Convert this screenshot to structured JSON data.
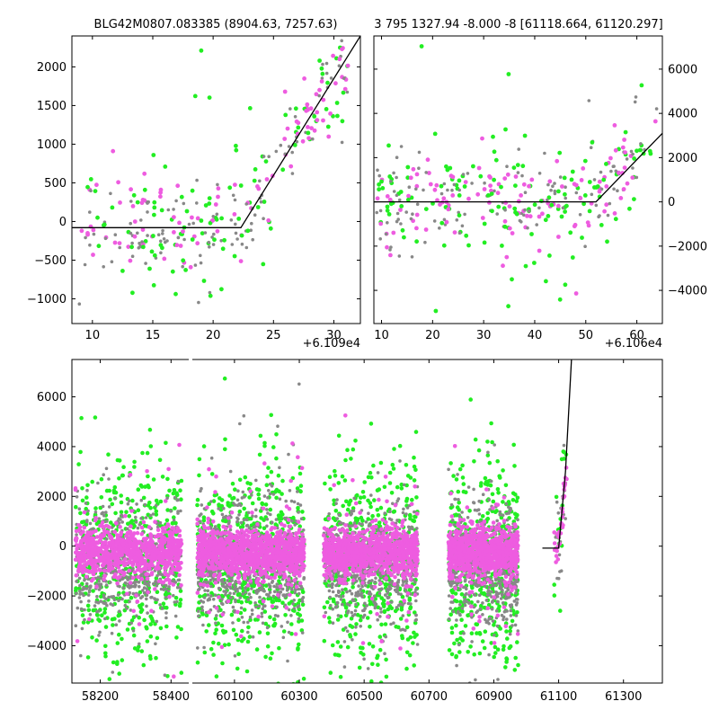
{
  "chart_data": [
    {
      "type": "scatter",
      "title": "BLG42M0807.083385 (8904.63, 7257.63)",
      "x_offset_label": "+6.109e4",
      "xlim": [
        8.3,
        32.2
      ],
      "ylim": [
        -1320,
        2400
      ],
      "xticks": [
        10,
        15,
        20,
        25,
        30
      ],
      "yticks": [
        -1000,
        -500,
        0,
        500,
        1000,
        1500,
        2000
      ],
      "ytick_side": "left",
      "model_line": {
        "x": [
          8.3,
          22.3,
          32.2
        ],
        "y": [
          -80,
          -80,
          2400
        ],
        "color": "#000000"
      },
      "series_colors": [
        "#ee5ce0",
        "#888888",
        "#22ee22"
      ],
      "dot_count": 330,
      "seed": 11
    },
    {
      "type": "scatter",
      "title": "3 795 1327.94 -8.000 -8 [61118.664, 61120.297]",
      "x_offset_label": "+6.106e4",
      "xlim": [
        8.5,
        65
      ],
      "ylim": [
        -5500,
        7500
      ],
      "xticks": [
        10,
        20,
        30,
        40,
        50,
        60
      ],
      "yticks": [
        -4000,
        -2000,
        0,
        2000,
        4000,
        6000
      ],
      "ytick_side": "right",
      "model_line": {
        "x": [
          8.5,
          52,
          65
        ],
        "y": [
          0,
          0,
          3100
        ],
        "color": "#000000"
      },
      "series_colors": [
        "#ee5ce0",
        "#888888",
        "#22ee22"
      ],
      "dot_count": 380,
      "seed": 23
    },
    {
      "type": "scatter",
      "title": "",
      "broken_x_axis": true,
      "segments": [
        {
          "xlim": [
            58120,
            58450
          ],
          "xticks": [
            58200,
            58400
          ]
        },
        {
          "xlim": [
            59970,
            61420
          ],
          "xticks": [
            60100,
            60300,
            60500,
            60700,
            60900,
            61100,
            61300
          ]
        }
      ],
      "ylim": [
        -5500,
        7500
      ],
      "yticks": [
        -4000,
        -2000,
        0,
        2000,
        4000,
        6000
      ],
      "ytick_side": "left",
      "seasons": [
        {
          "x": [
            58130,
            58430
          ],
          "n": 1900
        },
        {
          "x": [
            59985,
            60315
          ],
          "n": 2400
        },
        {
          "x": [
            60375,
            60665
          ],
          "n": 2100
        },
        {
          "x": [
            60760,
            60975
          ],
          "n": 1900
        },
        {
          "x": [
            61085,
            61125
          ],
          "n": 70
        }
      ],
      "model_line": {
        "x": [
          61050,
          61100,
          61121,
          61140
        ],
        "y": [
          -80,
          -80,
          3000,
          7600
        ],
        "color": "#000000"
      },
      "series_colors": [
        "#22ee22",
        "#888888",
        "#ee5ce0"
      ],
      "seed": 37
    }
  ]
}
